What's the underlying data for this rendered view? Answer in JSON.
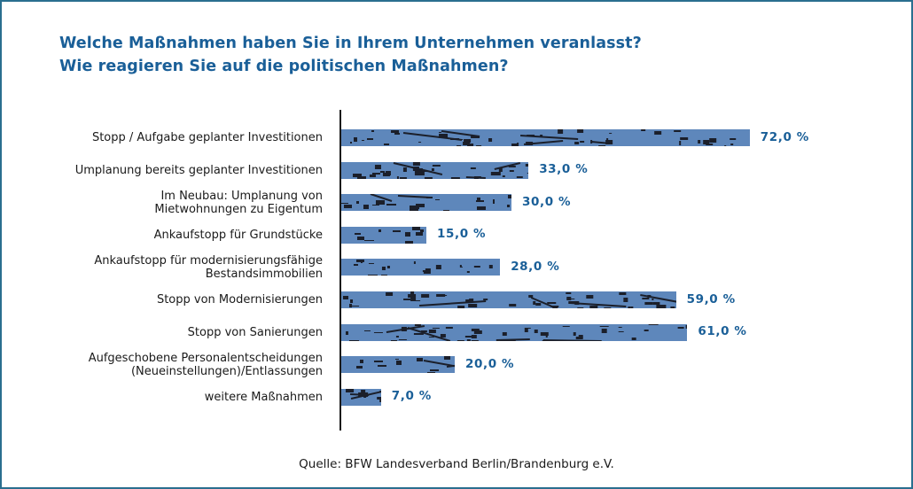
{
  "chart_data": {
    "type": "bar",
    "orientation": "horizontal",
    "title": "Welche Maßnahmen haben Sie in Ihrem Unternehmen veranlasst?",
    "subtitle": "Wie reagieren Sie auf die politischen Maßnahmen?",
    "xlabel": "",
    "ylabel": "",
    "xlim": [
      0,
      100
    ],
    "grid": false,
    "categories": [
      "Stopp / Aufgabe geplanter Investitionen",
      "Umplanung bereits geplanter Investitionen",
      "Im Neubau: Umplanung von\nMietwohnungen zu Eigentum",
      "Ankaufstopp für Grundstücke",
      "Ankaufstopp für modernisierungsfähige\nBestandsimmobilien",
      "Stopp von Modernisierungen",
      "Stopp von Sanierungen",
      "Aufgeschobene Personalentscheidungen\n(Neueinstellungen)/Entlassungen",
      "weitere Maßnahmen"
    ],
    "values": [
      72.0,
      33.0,
      30.0,
      15.0,
      28.0,
      59.0,
      61.0,
      20.0,
      7.0
    ],
    "value_labels": [
      "72,0 %",
      "33,0 %",
      "30,0 %",
      "15,0 %",
      "28,0 %",
      "59,0 %",
      "61,0 %",
      "20,0 %",
      "7,0 %"
    ],
    "source": "Quelle: BFW Landesverband Berlin/Brandenburg e.V.",
    "colors": {
      "title": "#1a5f98",
      "bar": "#5e87bb",
      "bar_texture": "#1b1f2a",
      "value_label": "#1a5f98",
      "frame": "#2a6f8f"
    }
  }
}
